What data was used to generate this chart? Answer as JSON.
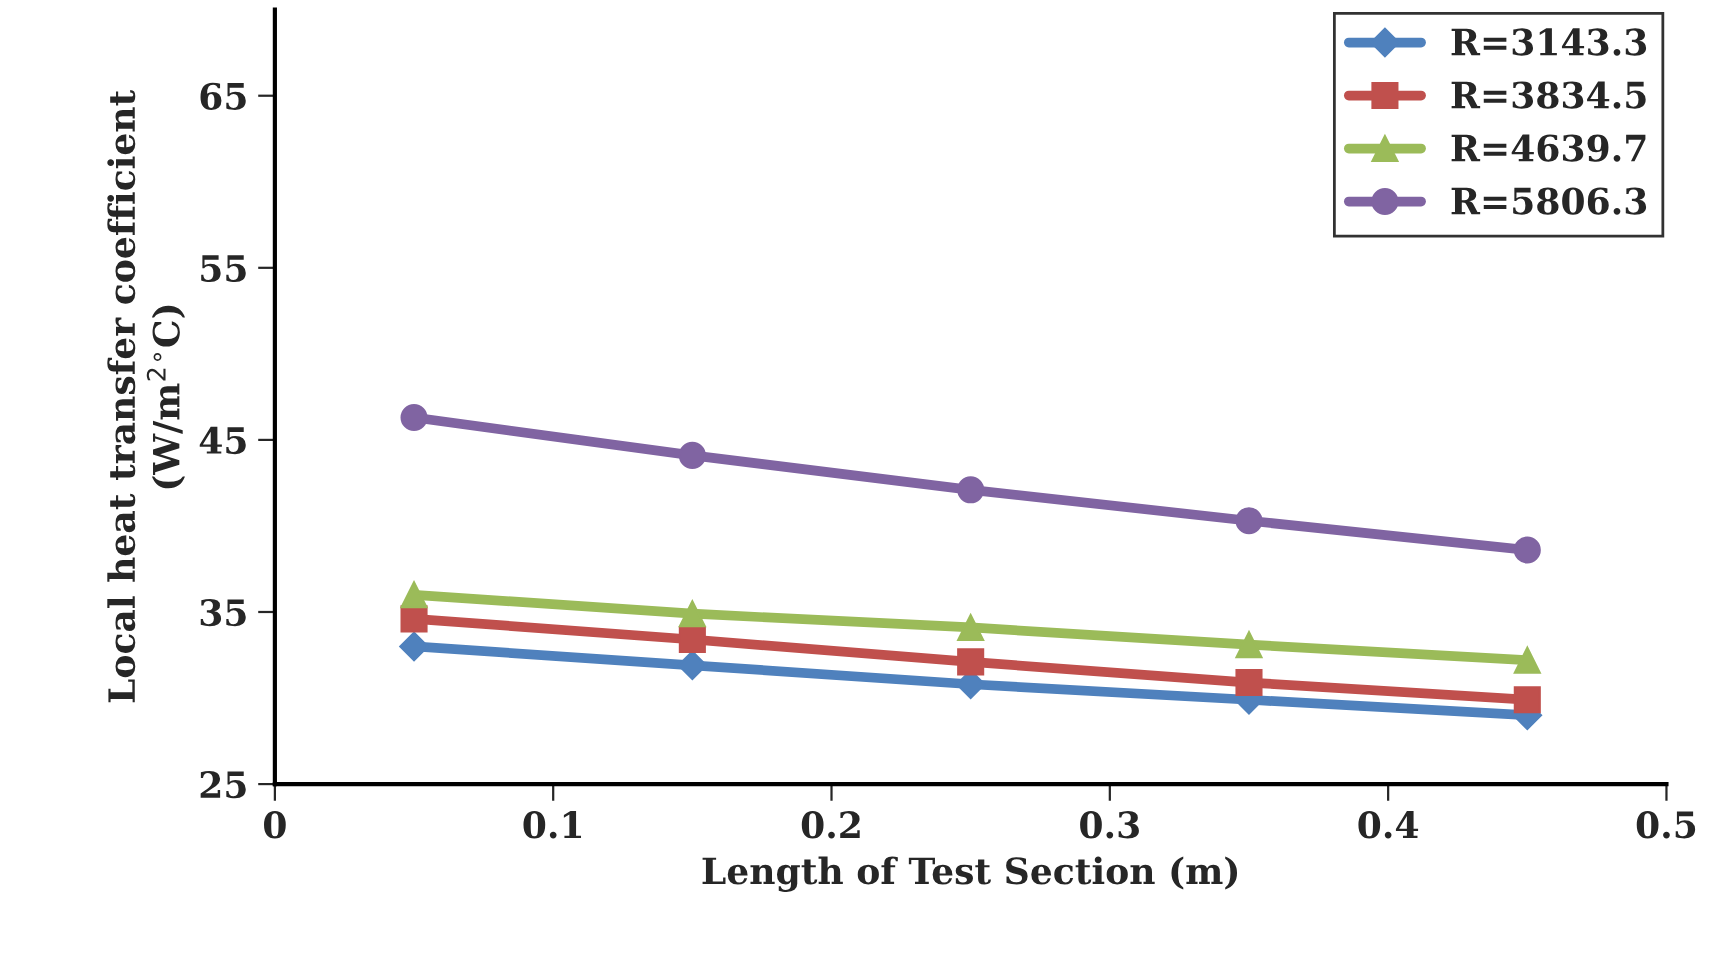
{
  "chart_data": {
    "type": "line",
    "xlabel": "Length of Test Section (m)",
    "ylabel": "Local heat transfer coefficient\n(W/m$^{2}$$^{∘}$C)",
    "x": [
      0.05,
      0.15,
      0.25,
      0.35,
      0.45
    ],
    "series": [
      {
        "name": "R=3143.3",
        "color": "#4f81bd",
        "marker": "diamond",
        "values": [
          33.0,
          31.9,
          30.8,
          29.9,
          29.0
        ]
      },
      {
        "name": "R=3834.5",
        "color": "#c0504d",
        "marker": "square",
        "values": [
          34.6,
          33.4,
          32.1,
          30.9,
          29.9
        ]
      },
      {
        "name": "R=4639.7",
        "color": "#9bbb59",
        "marker": "triangle",
        "values": [
          36.0,
          34.9,
          34.1,
          33.1,
          32.2
        ]
      },
      {
        "name": "R=5806.3",
        "color": "#8064a2",
        "marker": "circle",
        "values": [
          46.3,
          44.1,
          42.1,
          40.3,
          38.6
        ]
      }
    ],
    "xlim": [
      0,
      0.5
    ],
    "xticks": [
      {
        "value": 0,
        "label": "0"
      },
      0.1,
      0.2,
      0.3,
      0.4,
      0.5
    ],
    "ylim": [
      25,
      70
    ],
    "yticks": [
      25,
      35,
      45,
      55,
      65
    ],
    "grid": false,
    "legend": "top right"
  }
}
